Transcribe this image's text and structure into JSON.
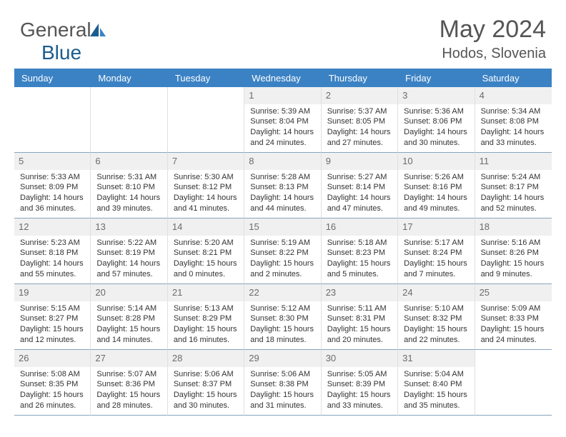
{
  "colors": {
    "header_bg": "#3b82c4",
    "header_text": "#ffffff",
    "daynum_bg": "#f0f0f0",
    "daynum_text": "#6b6b6b",
    "cell_border_right": "#e0e0e0",
    "cell_border_bottom": "#87a4bd",
    "body_text": "#333333",
    "title_text": "#555555",
    "logo_gray": "#555555",
    "logo_blue": "#1b5d8f"
  },
  "logo": {
    "text1": "General",
    "text2": "Blue"
  },
  "title": "May 2024",
  "location": "Hodos, Slovenia",
  "day_names": [
    "Sunday",
    "Monday",
    "Tuesday",
    "Wednesday",
    "Thursday",
    "Friday",
    "Saturday"
  ],
  "first_day_col": 3,
  "days": [
    {
      "n": "1",
      "sunrise": "5:39 AM",
      "sunset": "8:04 PM",
      "daylight": "14 hours and 24 minutes."
    },
    {
      "n": "2",
      "sunrise": "5:37 AM",
      "sunset": "8:05 PM",
      "daylight": "14 hours and 27 minutes."
    },
    {
      "n": "3",
      "sunrise": "5:36 AM",
      "sunset": "8:06 PM",
      "daylight": "14 hours and 30 minutes."
    },
    {
      "n": "4",
      "sunrise": "5:34 AM",
      "sunset": "8:08 PM",
      "daylight": "14 hours and 33 minutes."
    },
    {
      "n": "5",
      "sunrise": "5:33 AM",
      "sunset": "8:09 PM",
      "daylight": "14 hours and 36 minutes."
    },
    {
      "n": "6",
      "sunrise": "5:31 AM",
      "sunset": "8:10 PM",
      "daylight": "14 hours and 39 minutes."
    },
    {
      "n": "7",
      "sunrise": "5:30 AM",
      "sunset": "8:12 PM",
      "daylight": "14 hours and 41 minutes."
    },
    {
      "n": "8",
      "sunrise": "5:28 AM",
      "sunset": "8:13 PM",
      "daylight": "14 hours and 44 minutes."
    },
    {
      "n": "9",
      "sunrise": "5:27 AM",
      "sunset": "8:14 PM",
      "daylight": "14 hours and 47 minutes."
    },
    {
      "n": "10",
      "sunrise": "5:26 AM",
      "sunset": "8:16 PM",
      "daylight": "14 hours and 49 minutes."
    },
    {
      "n": "11",
      "sunrise": "5:24 AM",
      "sunset": "8:17 PM",
      "daylight": "14 hours and 52 minutes."
    },
    {
      "n": "12",
      "sunrise": "5:23 AM",
      "sunset": "8:18 PM",
      "daylight": "14 hours and 55 minutes."
    },
    {
      "n": "13",
      "sunrise": "5:22 AM",
      "sunset": "8:19 PM",
      "daylight": "14 hours and 57 minutes."
    },
    {
      "n": "14",
      "sunrise": "5:20 AM",
      "sunset": "8:21 PM",
      "daylight": "15 hours and 0 minutes."
    },
    {
      "n": "15",
      "sunrise": "5:19 AM",
      "sunset": "8:22 PM",
      "daylight": "15 hours and 2 minutes."
    },
    {
      "n": "16",
      "sunrise": "5:18 AM",
      "sunset": "8:23 PM",
      "daylight": "15 hours and 5 minutes."
    },
    {
      "n": "17",
      "sunrise": "5:17 AM",
      "sunset": "8:24 PM",
      "daylight": "15 hours and 7 minutes."
    },
    {
      "n": "18",
      "sunrise": "5:16 AM",
      "sunset": "8:26 PM",
      "daylight": "15 hours and 9 minutes."
    },
    {
      "n": "19",
      "sunrise": "5:15 AM",
      "sunset": "8:27 PM",
      "daylight": "15 hours and 12 minutes."
    },
    {
      "n": "20",
      "sunrise": "5:14 AM",
      "sunset": "8:28 PM",
      "daylight": "15 hours and 14 minutes."
    },
    {
      "n": "21",
      "sunrise": "5:13 AM",
      "sunset": "8:29 PM",
      "daylight": "15 hours and 16 minutes."
    },
    {
      "n": "22",
      "sunrise": "5:12 AM",
      "sunset": "8:30 PM",
      "daylight": "15 hours and 18 minutes."
    },
    {
      "n": "23",
      "sunrise": "5:11 AM",
      "sunset": "8:31 PM",
      "daylight": "15 hours and 20 minutes."
    },
    {
      "n": "24",
      "sunrise": "5:10 AM",
      "sunset": "8:32 PM",
      "daylight": "15 hours and 22 minutes."
    },
    {
      "n": "25",
      "sunrise": "5:09 AM",
      "sunset": "8:33 PM",
      "daylight": "15 hours and 24 minutes."
    },
    {
      "n": "26",
      "sunrise": "5:08 AM",
      "sunset": "8:35 PM",
      "daylight": "15 hours and 26 minutes."
    },
    {
      "n": "27",
      "sunrise": "5:07 AM",
      "sunset": "8:36 PM",
      "daylight": "15 hours and 28 minutes."
    },
    {
      "n": "28",
      "sunrise": "5:06 AM",
      "sunset": "8:37 PM",
      "daylight": "15 hours and 30 minutes."
    },
    {
      "n": "29",
      "sunrise": "5:06 AM",
      "sunset": "8:38 PM",
      "daylight": "15 hours and 31 minutes."
    },
    {
      "n": "30",
      "sunrise": "5:05 AM",
      "sunset": "8:39 PM",
      "daylight": "15 hours and 33 minutes."
    },
    {
      "n": "31",
      "sunrise": "5:04 AM",
      "sunset": "8:40 PM",
      "daylight": "15 hours and 35 minutes."
    }
  ],
  "labels": {
    "sunrise": "Sunrise: ",
    "sunset": "Sunset: ",
    "daylight": "Daylight: "
  }
}
